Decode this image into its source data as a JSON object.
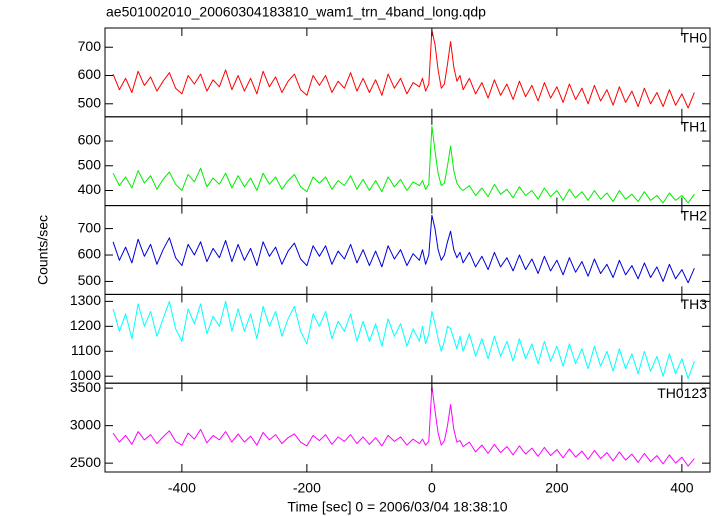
{
  "title": "ae501002010_20060304183810_wam1_trn_4band_long.qdp",
  "y_label": "Counts/sec",
  "chart_data": [
    {
      "type": "line",
      "xlim": [
        -523,
        445
      ],
      "ylim": [
        454,
        768
      ],
      "yticks": [
        500,
        600,
        700
      ],
      "x": [
        -510,
        -500,
        -490,
        -480,
        -470,
        -460,
        -450,
        -440,
        -430,
        -420,
        -410,
        -400,
        -390,
        -380,
        -370,
        -360,
        -350,
        -340,
        -330,
        -320,
        -310,
        -300,
        -290,
        -280,
        -270,
        -260,
        -250,
        -240,
        -230,
        -220,
        -210,
        -200,
        -190,
        -180,
        -170,
        -160,
        -150,
        -140,
        -130,
        -120,
        -110,
        -100,
        -90,
        -80,
        -70,
        -60,
        -50,
        -40,
        -30,
        -20,
        -15,
        -10,
        -5,
        0,
        5,
        10,
        15,
        20,
        25,
        30,
        35,
        40,
        45,
        50,
        60,
        70,
        80,
        90,
        100,
        110,
        120,
        130,
        140,
        150,
        160,
        170,
        180,
        190,
        200,
        210,
        220,
        230,
        240,
        250,
        260,
        270,
        280,
        290,
        300,
        310,
        320,
        330,
        340,
        350,
        360,
        370,
        380,
        390,
        400,
        410,
        420
      ],
      "series": [
        {
          "name": "TH0",
          "color": "#ff0000",
          "values": [
            605,
            550,
            590,
            540,
            615,
            565,
            595,
            545,
            580,
            610,
            555,
            535,
            600,
            570,
            605,
            545,
            585,
            560,
            620,
            550,
            600,
            545,
            590,
            535,
            615,
            560,
            595,
            540,
            580,
            605,
            550,
            530,
            600,
            565,
            600,
            540,
            580,
            555,
            610,
            545,
            590,
            540,
            585,
            530,
            605,
            555,
            590,
            535,
            575,
            560,
            590,
            545,
            570,
            760,
            710,
            620,
            555,
            570,
            640,
            720,
            630,
            580,
            600,
            550,
            590,
            535,
            575,
            520,
            585,
            530,
            570,
            515,
            580,
            525,
            565,
            510,
            575,
            520,
            560,
            505,
            570,
            515,
            555,
            500,
            565,
            510,
            550,
            495,
            560,
            505,
            545,
            490,
            555,
            500,
            540,
            490,
            550,
            495,
            535,
            485,
            540
          ]
        }
      ]
    },
    {
      "type": "line",
      "xlim": [
        -523,
        445
      ],
      "ylim": [
        339,
        698
      ],
      "yticks": [
        400,
        500,
        600
      ],
      "x": [
        -510,
        -500,
        -490,
        -480,
        -470,
        -460,
        -450,
        -440,
        -430,
        -420,
        -410,
        -400,
        -390,
        -380,
        -370,
        -360,
        -350,
        -340,
        -330,
        -320,
        -310,
        -300,
        -290,
        -280,
        -270,
        -260,
        -250,
        -240,
        -230,
        -220,
        -210,
        -200,
        -190,
        -180,
        -170,
        -160,
        -150,
        -140,
        -130,
        -120,
        -110,
        -100,
        -90,
        -80,
        -70,
        -60,
        -50,
        -40,
        -30,
        -20,
        -15,
        -10,
        -5,
        0,
        5,
        10,
        15,
        20,
        25,
        30,
        35,
        40,
        45,
        50,
        60,
        70,
        80,
        90,
        100,
        110,
        120,
        130,
        140,
        150,
        160,
        170,
        180,
        190,
        200,
        210,
        220,
        230,
        240,
        250,
        260,
        270,
        280,
        290,
        300,
        310,
        320,
        330,
        340,
        350,
        360,
        370,
        380,
        390,
        400,
        410,
        420
      ],
      "series": [
        {
          "name": "TH1",
          "color": "#00ee00",
          "values": [
            470,
            420,
            455,
            410,
            480,
            430,
            460,
            405,
            445,
            475,
            425,
            400,
            465,
            435,
            490,
            415,
            450,
            425,
            470,
            410,
            460,
            415,
            450,
            400,
            470,
            425,
            455,
            405,
            440,
            465,
            415,
            395,
            455,
            430,
            455,
            405,
            440,
            420,
            460,
            405,
            445,
            400,
            440,
            395,
            455,
            415,
            445,
            400,
            435,
            420,
            440,
            405,
            425,
            660,
            560,
            470,
            420,
            430,
            500,
            580,
            480,
            430,
            410,
            400,
            420,
            380,
            410,
            375,
            425,
            385,
            405,
            370,
            415,
            380,
            400,
            365,
            410,
            375,
            400,
            360,
            405,
            370,
            395,
            360,
            400,
            365,
            390,
            355,
            400,
            365,
            385,
            355,
            395,
            360,
            380,
            350,
            390,
            360,
            380,
            350,
            385
          ]
        }
      ]
    },
    {
      "type": "line",
      "xlim": [
        -523,
        445
      ],
      "ylim": [
        451,
        787
      ],
      "yticks": [
        500,
        600,
        700
      ],
      "x": [
        -510,
        -500,
        -490,
        -480,
        -470,
        -460,
        -450,
        -440,
        -430,
        -420,
        -410,
        -400,
        -390,
        -380,
        -370,
        -360,
        -350,
        -340,
        -330,
        -320,
        -310,
        -300,
        -290,
        -280,
        -270,
        -260,
        -250,
        -240,
        -230,
        -220,
        -210,
        -200,
        -190,
        -180,
        -170,
        -160,
        -150,
        -140,
        -130,
        -120,
        -110,
        -100,
        -90,
        -80,
        -70,
        -60,
        -50,
        -40,
        -30,
        -20,
        -15,
        -10,
        -5,
        0,
        5,
        10,
        15,
        20,
        25,
        30,
        35,
        40,
        45,
        50,
        60,
        70,
        80,
        90,
        100,
        110,
        120,
        130,
        140,
        150,
        160,
        170,
        180,
        190,
        200,
        210,
        220,
        230,
        240,
        250,
        260,
        270,
        280,
        290,
        300,
        310,
        320,
        330,
        340,
        350,
        360,
        370,
        380,
        390,
        400,
        410,
        420
      ],
      "series": [
        {
          "name": "TH2",
          "color": "#0000dd",
          "values": [
            650,
            580,
            630,
            570,
            660,
            595,
            640,
            565,
            620,
            665,
            590,
            560,
            640,
            600,
            650,
            575,
            625,
            590,
            655,
            575,
            640,
            580,
            625,
            560,
            650,
            595,
            630,
            565,
            615,
            645,
            585,
            560,
            635,
            595,
            635,
            565,
            615,
            585,
            640,
            570,
            620,
            560,
            615,
            555,
            635,
            585,
            620,
            560,
            605,
            580,
            620,
            565,
            600,
            750,
            700,
            620,
            580,
            600,
            650,
            690,
            620,
            590,
            610,
            570,
            610,
            555,
            595,
            545,
            610,
            555,
            590,
            540,
            600,
            545,
            585,
            530,
            595,
            540,
            580,
            525,
            590,
            535,
            575,
            520,
            585,
            530,
            565,
            515,
            580,
            525,
            560,
            510,
            570,
            515,
            555,
            500,
            565,
            510,
            545,
            495,
            550
          ]
        }
      ]
    },
    {
      "type": "line",
      "xlim": [
        -523,
        445
      ],
      "ylim": [
        972,
        1328
      ],
      "yticks": [
        1000,
        1100,
        1200,
        1300
      ],
      "x": [
        -510,
        -500,
        -490,
        -480,
        -470,
        -460,
        -450,
        -440,
        -430,
        -420,
        -410,
        -400,
        -390,
        -380,
        -370,
        -360,
        -350,
        -340,
        -330,
        -320,
        -310,
        -300,
        -290,
        -280,
        -270,
        -260,
        -250,
        -240,
        -230,
        -220,
        -210,
        -200,
        -190,
        -180,
        -170,
        -160,
        -150,
        -140,
        -130,
        -120,
        -110,
        -100,
        -90,
        -80,
        -70,
        -60,
        -50,
        -40,
        -30,
        -20,
        -15,
        -10,
        -5,
        0,
        5,
        10,
        15,
        20,
        25,
        30,
        35,
        40,
        45,
        50,
        60,
        70,
        80,
        90,
        100,
        110,
        120,
        130,
        140,
        150,
        160,
        170,
        180,
        190,
        200,
        210,
        220,
        230,
        240,
        250,
        260,
        270,
        280,
        290,
        300,
        310,
        320,
        330,
        340,
        350,
        360,
        370,
        380,
        390,
        400,
        410,
        420
      ],
      "series": [
        {
          "name": "TH3",
          "color": "#00ffff",
          "values": [
            1270,
            1180,
            1250,
            1150,
            1290,
            1200,
            1260,
            1160,
            1230,
            1300,
            1190,
            1140,
            1270,
            1210,
            1290,
            1170,
            1240,
            1200,
            1300,
            1180,
            1270,
            1180,
            1250,
            1150,
            1280,
            1200,
            1260,
            1160,
            1230,
            1280,
            1180,
            1130,
            1250,
            1200,
            1260,
            1150,
            1220,
            1180,
            1250,
            1140,
            1220,
            1140,
            1210,
            1120,
            1230,
            1160,
            1210,
            1120,
            1190,
            1140,
            1200,
            1130,
            1170,
            1260,
            1210,
            1150,
            1100,
            1140,
            1200,
            1190,
            1150,
            1110,
            1160,
            1100,
            1170,
            1080,
            1150,
            1070,
            1160,
            1080,
            1140,
            1060,
            1150,
            1070,
            1130,
            1050,
            1140,
            1060,
            1120,
            1040,
            1130,
            1050,
            1110,
            1030,
            1120,
            1040,
            1100,
            1020,
            1110,
            1030,
            1090,
            1010,
            1100,
            1020,
            1080,
            1000,
            1090,
            1010,
            1070,
            990,
            1060
          ]
        }
      ]
    },
    {
      "type": "line",
      "xlim": [
        -523,
        445
      ],
      "ylim": [
        2382,
        3566
      ],
      "yticks": [
        2500,
        3000,
        3500
      ],
      "xticks": [
        -400,
        -200,
        0,
        200,
        400
      ],
      "x_label": "Time [sec] 0 = 2006/03/04 18:38:10",
      "x": [
        -510,
        -500,
        -490,
        -480,
        -470,
        -460,
        -450,
        -440,
        -430,
        -420,
        -410,
        -400,
        -390,
        -380,
        -370,
        -360,
        -350,
        -340,
        -330,
        -320,
        -310,
        -300,
        -290,
        -280,
        -270,
        -260,
        -250,
        -240,
        -230,
        -220,
        -210,
        -200,
        -190,
        -180,
        -170,
        -160,
        -150,
        -140,
        -130,
        -120,
        -110,
        -100,
        -90,
        -80,
        -70,
        -60,
        -50,
        -40,
        -30,
        -20,
        -15,
        -10,
        -5,
        0,
        5,
        10,
        15,
        20,
        25,
        30,
        35,
        40,
        45,
        50,
        60,
        70,
        80,
        90,
        100,
        110,
        120,
        130,
        140,
        150,
        160,
        170,
        180,
        190,
        200,
        210,
        220,
        230,
        240,
        250,
        260,
        270,
        280,
        290,
        300,
        310,
        320,
        330,
        340,
        350,
        360,
        370,
        380,
        390,
        400,
        410,
        420
      ],
      "series": [
        {
          "name": "TH0123",
          "color": "#ff00ff",
          "values": [
            2900,
            2780,
            2870,
            2750,
            2920,
            2810,
            2880,
            2760,
            2850,
            2930,
            2790,
            2740,
            2900,
            2820,
            2950,
            2770,
            2870,
            2810,
            2920,
            2780,
            2890,
            2780,
            2860,
            2740,
            2910,
            2810,
            2880,
            2760,
            2840,
            2890,
            2780,
            2730,
            2870,
            2800,
            2880,
            2750,
            2850,
            2790,
            2880,
            2760,
            2850,
            2750,
            2840,
            2730,
            2870,
            2790,
            2850,
            2740,
            2820,
            2760,
            2820,
            2740,
            2790,
            3520,
            3200,
            2900,
            2740,
            2800,
            3000,
            3280,
            2950,
            2780,
            2800,
            2720,
            2780,
            2650,
            2740,
            2630,
            2750,
            2640,
            2720,
            2610,
            2730,
            2620,
            2700,
            2590,
            2710,
            2600,
            2680,
            2570,
            2690,
            2580,
            2660,
            2550,
            2670,
            2560,
            2640,
            2530,
            2650,
            2540,
            2620,
            2510,
            2630,
            2520,
            2600,
            2490,
            2610,
            2500,
            2580,
            2460,
            2560
          ]
        }
      ]
    }
  ]
}
